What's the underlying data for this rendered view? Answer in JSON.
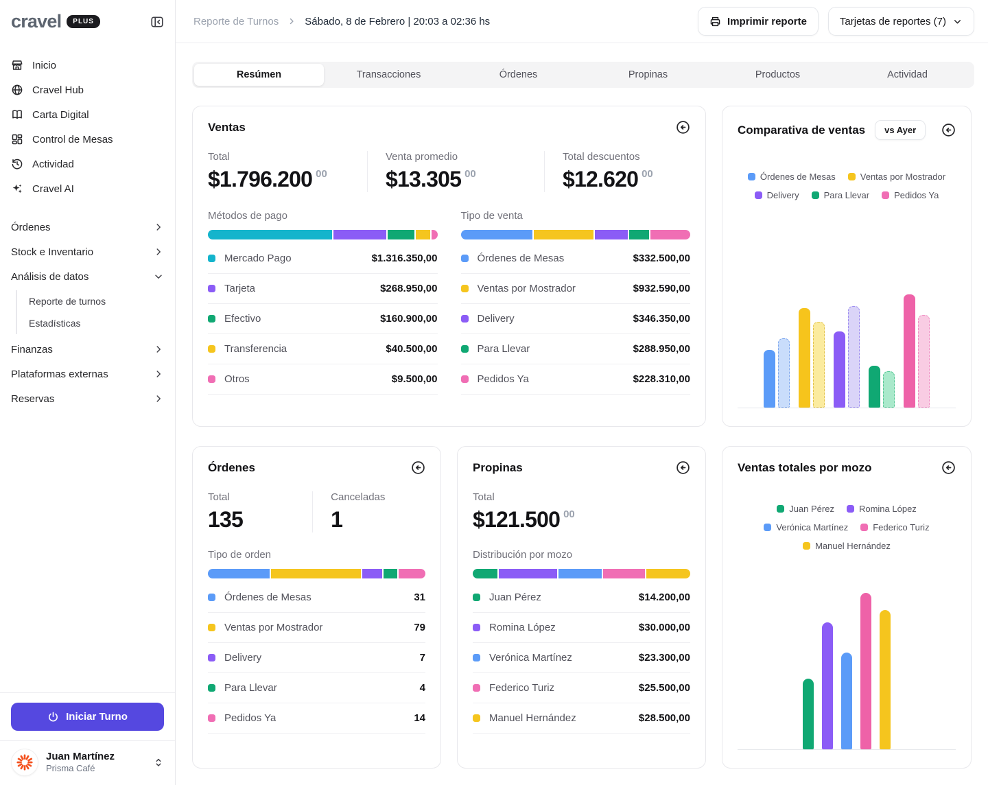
{
  "sidebar": {
    "logo": "cravel",
    "badge": "PLUS",
    "nav": [
      {
        "label": "Inicio",
        "icon": "store"
      },
      {
        "label": "Cravel Hub",
        "icon": "globe"
      },
      {
        "label": "Carta Digital",
        "icon": "book"
      },
      {
        "label": "Control de Mesas",
        "icon": "grid"
      },
      {
        "label": "Actividad",
        "icon": "history"
      },
      {
        "label": "Cravel AI",
        "icon": "sparkles"
      }
    ],
    "sections": [
      {
        "label": "Órdenes"
      },
      {
        "label": "Stock e Inventario"
      },
      {
        "label": "Análisis de datos"
      },
      {
        "label": "Finanzas"
      },
      {
        "label": "Plataformas externas"
      },
      {
        "label": "Reservas"
      }
    ],
    "subitems": [
      {
        "label": "Reporte de turnos"
      },
      {
        "label": "Estadísticas"
      }
    ],
    "start_shift_label": "Iniciar Turno",
    "user": {
      "name": "Juan Martínez",
      "org": "Prisma Café"
    }
  },
  "header": {
    "breadcrumb_root": "Reporte de Turnos",
    "breadcrumb_current": "Sábado, 8 de Febrero | 20:03 a 02:36 hs",
    "print_label": "Imprimir reporte",
    "cards_dropdown_label": "Tarjetas de reportes (7)"
  },
  "tabs": [
    {
      "label": "Resúmen"
    },
    {
      "label": "Transacciones"
    },
    {
      "label": "Órdenes"
    },
    {
      "label": "Propinas"
    },
    {
      "label": "Productos"
    },
    {
      "label": "Actividad"
    }
  ],
  "colors": {
    "accent": "#5548e0",
    "blue": "#5B9BF8",
    "cyan": "#14B4CC",
    "purple": "#8B5CF6",
    "green": "#10A873",
    "yellow": "#F5C51E",
    "pink": "#F06EB4"
  },
  "cards": {
    "ventas": {
      "title": "Ventas",
      "stats": [
        {
          "label": "Total",
          "value": "$1.796.200",
          "cents": "00"
        },
        {
          "label": "Venta promedio",
          "value": "$13.305",
          "cents": "00"
        },
        {
          "label": "Total descuentos",
          "value": "$12.620",
          "cents": "00"
        }
      ],
      "payment": {
        "label": "Métodos de pago",
        "rows": [
          {
            "label": "Mercado Pago",
            "value": "$1.316.350,00",
            "color": "#14B4CC",
            "pct": 55.5
          },
          {
            "label": "Tarjeta",
            "value": "$268.950,00",
            "color": "#8B5CF6",
            "pct": 23.4
          },
          {
            "label": "Efectivo",
            "value": "$160.900,00",
            "color": "#10A873",
            "pct": 12.2
          },
          {
            "label": "Transferencia",
            "value": "$40.500,00",
            "color": "#F5C51E",
            "pct": 6.3
          },
          {
            "label": "Otros",
            "value": "$9.500,00",
            "color": "#F06EB4",
            "pct": 2.6
          }
        ]
      },
      "sale_type": {
        "label": "Tipo de venta",
        "rows": [
          {
            "label": "Órdenes de Mesas",
            "value": "$332.500,00",
            "color": "#5B9BF8",
            "pct": 32.1
          },
          {
            "label": "Ventas por Mostrador",
            "value": "$932.590,00",
            "color": "#F5C51E",
            "pct": 26.6
          },
          {
            "label": "Delivery",
            "value": "$346.350,00",
            "color": "#8B5CF6",
            "pct": 14.6
          },
          {
            "label": "Para Llevar",
            "value": "$288.950,00",
            "color": "#10A873",
            "pct": 9.0
          },
          {
            "label": "Pedidos Ya",
            "value": "$228.310,00",
            "color": "#F06EB4",
            "pct": 17.7
          }
        ]
      }
    },
    "comparativa": {
      "title": "Comparativa de ventas",
      "badge": "vs Ayer",
      "legend": [
        {
          "label": "Órdenes de Mesas",
          "color": "#5B9BF8"
        },
        {
          "label": "Ventas por Mostrador",
          "color": "#F5C51E"
        },
        {
          "label": "Delivery",
          "color": "#8B5CF6"
        },
        {
          "label": "Para Llevar",
          "color": "#10A873"
        },
        {
          "label": "Pedidos Ya",
          "color": "#F06EB4"
        }
      ],
      "groups": [
        {
          "name": "Órdenes de Mesas",
          "color": "#5B9BF8",
          "light": "#C9DDFB",
          "border": "#7FA8EE",
          "today": 51,
          "yesterday": 61
        },
        {
          "name": "Ventas por Mostrador",
          "color": "#F6C41C",
          "light": "#FBEB9E",
          "border": "#E3C44C",
          "today": 88,
          "yesterday": 76
        },
        {
          "name": "Delivery",
          "color": "#8B5CF6",
          "light": "#DAD4F8",
          "border": "#9C8CF0",
          "today": 67,
          "yesterday": 90
        },
        {
          "name": "Para Llevar",
          "color": "#10A873",
          "light": "#A9E9CB",
          "border": "#56C795",
          "today": 37,
          "yesterday": 32
        },
        {
          "name": "Pedidos Ya",
          "color": "#EE62A8",
          "light": "#F9CCE3",
          "border": "#F08FC4",
          "today": 100,
          "yesterday": 82
        }
      ]
    },
    "ordenes": {
      "title": "Órdenes",
      "stats": [
        {
          "label": "Total",
          "value": "135"
        },
        {
          "label": "Canceladas",
          "value": "1"
        }
      ],
      "dist": {
        "label": "Tipo de orden",
        "rows": [
          {
            "label": "Órdenes de Mesas",
            "value": "31",
            "color": "#5B9BF8",
            "pct": 29.1
          },
          {
            "label": "Ventas por Mostrador",
            "value": "79",
            "color": "#F5C51E",
            "pct": 42.3
          },
          {
            "label": "Delivery",
            "value": "7",
            "color": "#8B5CF6",
            "pct": 9.6
          },
          {
            "label": "Para Llevar",
            "value": "4",
            "color": "#10A873",
            "pct": 6.4
          },
          {
            "label": "Pedidos Ya",
            "value": "14",
            "color": "#F06EB4",
            "pct": 12.6
          }
        ]
      }
    },
    "propinas": {
      "title": "Propinas",
      "stat": {
        "label": "Total",
        "value": "$121.500",
        "cents": "00"
      },
      "dist": {
        "label": "Distribución por mozo",
        "rows": [
          {
            "label": "Juan Pérez",
            "value": "$14.200,00",
            "color": "#10A873",
            "pct": 11.8
          },
          {
            "label": "Romina López",
            "value": "$30.000,00",
            "color": "#8B5CF6",
            "pct": 27.4
          },
          {
            "label": "Verónica Martínez",
            "value": "$23.300,00",
            "color": "#5B9BF8",
            "pct": 20.5
          },
          {
            "label": "Federico Turiz",
            "value": "$25.500,00",
            "color": "#F06EB4",
            "pct": 19.6
          },
          {
            "label": "Manuel Hernández",
            "value": "$28.500,00",
            "color": "#F5C51E",
            "pct": 20.7
          }
        ]
      }
    },
    "mozos": {
      "title": "Ventas totales por mozo",
      "legend": [
        {
          "label": "Juan Pérez",
          "color": "#10A873"
        },
        {
          "label": "Romina López",
          "color": "#8B5CF6"
        },
        {
          "label": "Verónica Martínez",
          "color": "#5B9BF8"
        },
        {
          "label": "Federico Turiz",
          "color": "#F06EB4"
        },
        {
          "label": "Manuel Hernández",
          "color": "#F5C51E"
        }
      ],
      "bars": [
        {
          "name": "Juan Pérez",
          "color": "#10A873",
          "pct": 45
        },
        {
          "name": "Romina López",
          "color": "#8B5CF6",
          "pct": 81
        },
        {
          "name": "Verónica Martínez",
          "color": "#5B9BF8",
          "pct": 62
        },
        {
          "name": "Federico Turiz",
          "color": "#EE62A8",
          "pct": 100
        },
        {
          "name": "Manuel Hernández",
          "color": "#F5C51E",
          "pct": 89
        }
      ]
    }
  }
}
